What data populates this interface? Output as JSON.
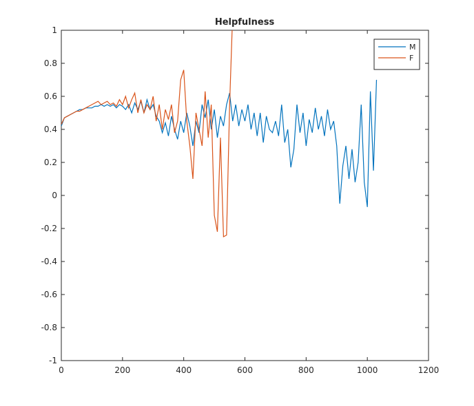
{
  "chart_data": {
    "type": "line",
    "title": "Helpfulness",
    "xlim": [
      0,
      1200
    ],
    "xticks": [
      0,
      200,
      400,
      600,
      800,
      1000,
      1200
    ],
    "ylim": [
      -1,
      1
    ],
    "yticks": [
      -1,
      -0.8,
      -0.6,
      -0.4,
      -0.2,
      0,
      0.2,
      0.4,
      0.6,
      0.8,
      1
    ],
    "legend": "upper right",
    "series": [
      {
        "name": "M",
        "color": "#0072bd",
        "x": [
          0,
          10,
          20,
          30,
          40,
          50,
          60,
          70,
          80,
          90,
          100,
          110,
          120,
          130,
          140,
          150,
          160,
          170,
          180,
          190,
          200,
          210,
          220,
          230,
          240,
          250,
          260,
          270,
          280,
          290,
          300,
          310,
          320,
          330,
          340,
          350,
          360,
          370,
          380,
          390,
          400,
          410,
          420,
          430,
          440,
          450,
          460,
          470,
          480,
          490,
          500,
          510,
          520,
          530,
          540,
          550,
          560,
          570,
          580,
          590,
          600,
          610,
          620,
          630,
          640,
          650,
          660,
          670,
          680,
          690,
          700,
          710,
          720,
          730,
          740,
          750,
          760,
          770,
          780,
          790,
          800,
          810,
          820,
          830,
          840,
          850,
          860,
          870,
          880,
          890,
          900,
          910,
          920,
          930,
          940,
          950,
          960,
          970,
          980,
          990,
          1000,
          1010,
          1020,
          1030
        ],
        "values": [
          0.42,
          0.47,
          0.48,
          0.49,
          0.5,
          0.51,
          0.52,
          0.52,
          0.53,
          0.53,
          0.53,
          0.54,
          0.54,
          0.55,
          0.54,
          0.55,
          0.54,
          0.55,
          0.53,
          0.55,
          0.54,
          0.52,
          0.55,
          0.5,
          0.56,
          0.52,
          0.57,
          0.5,
          0.58,
          0.52,
          0.55,
          0.48,
          0.45,
          0.38,
          0.44,
          0.36,
          0.48,
          0.4,
          0.34,
          0.45,
          0.38,
          0.5,
          0.42,
          0.3,
          0.45,
          0.38,
          0.55,
          0.47,
          0.58,
          0.4,
          0.52,
          0.35,
          0.48,
          0.42,
          0.55,
          0.62,
          0.45,
          0.55,
          0.42,
          0.52,
          0.45,
          0.55,
          0.4,
          0.5,
          0.36,
          0.5,
          0.32,
          0.48,
          0.4,
          0.38,
          0.45,
          0.36,
          0.55,
          0.32,
          0.4,
          0.17,
          0.28,
          0.55,
          0.38,
          0.5,
          0.3,
          0.46,
          0.38,
          0.53,
          0.4,
          0.48,
          0.36,
          0.52,
          0.4,
          0.45,
          0.3,
          -0.05,
          0.18,
          0.3,
          0.1,
          0.28,
          0.08,
          0.2,
          0.55,
          0.08,
          -0.07,
          0.63,
          0.15,
          0.7
        ]
      },
      {
        "name": "F",
        "color": "#d95319",
        "x": [
          0,
          10,
          20,
          30,
          40,
          50,
          60,
          70,
          80,
          90,
          100,
          110,
          120,
          130,
          140,
          150,
          160,
          170,
          180,
          190,
          200,
          210,
          220,
          230,
          240,
          250,
          260,
          270,
          280,
          290,
          300,
          310,
          320,
          330,
          340,
          350,
          360,
          370,
          380,
          390,
          400,
          410,
          420,
          430,
          440,
          450,
          460,
          470,
          480,
          490,
          500,
          510,
          520,
          530,
          540,
          550,
          560
        ],
        "values": [
          0.43,
          0.47,
          0.48,
          0.49,
          0.5,
          0.51,
          0.51,
          0.52,
          0.53,
          0.54,
          0.55,
          0.56,
          0.57,
          0.55,
          0.56,
          0.57,
          0.55,
          0.56,
          0.54,
          0.58,
          0.55,
          0.6,
          0.53,
          0.58,
          0.62,
          0.5,
          0.58,
          0.5,
          0.55,
          0.52,
          0.6,
          0.45,
          0.55,
          0.4,
          0.52,
          0.46,
          0.55,
          0.38,
          0.45,
          0.7,
          0.76,
          0.45,
          0.3,
          0.1,
          0.5,
          0.4,
          0.3,
          0.63,
          0.35,
          0.55,
          -0.12,
          -0.22,
          0.35,
          -0.25,
          -0.24,
          0.55,
          1.1
        ]
      }
    ]
  }
}
